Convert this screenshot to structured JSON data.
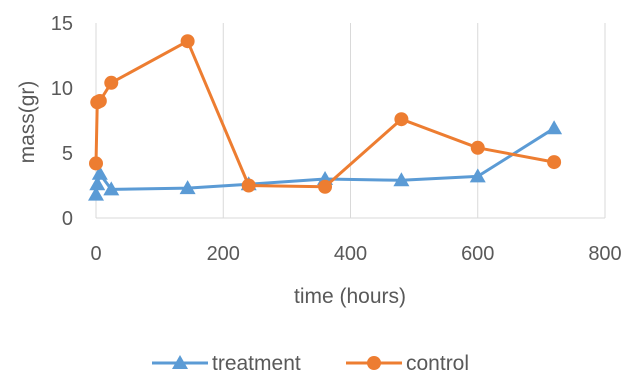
{
  "chart_data": {
    "type": "line",
    "xlabel": "time (hours)",
    "ylabel": "mass(gr)",
    "xlim": [
      0,
      800
    ],
    "ylim": [
      0,
      15
    ],
    "xticks": [
      0,
      200,
      400,
      600,
      800
    ],
    "yticks": [
      0,
      5,
      10,
      15
    ],
    "grid": "vertical gridlines",
    "legend_position": "bottom",
    "series": [
      {
        "name": "treatment",
        "color": "#5B9BD5",
        "marker": "triangle",
        "x": [
          0,
          2,
          6,
          24,
          144,
          240,
          360,
          480,
          600,
          720
        ],
        "y": [
          1.8,
          2.6,
          3.4,
          2.2,
          2.3,
          2.6,
          3.0,
          2.9,
          3.2,
          6.9
        ]
      },
      {
        "name": "control",
        "color": "#ED7D31",
        "marker": "circle",
        "x": [
          0,
          2,
          6,
          24,
          144,
          240,
          360,
          480,
          600,
          720
        ],
        "y": [
          4.2,
          8.9,
          9.0,
          10.4,
          13.6,
          2.5,
          2.4,
          7.6,
          5.4,
          4.3
        ]
      }
    ]
  }
}
